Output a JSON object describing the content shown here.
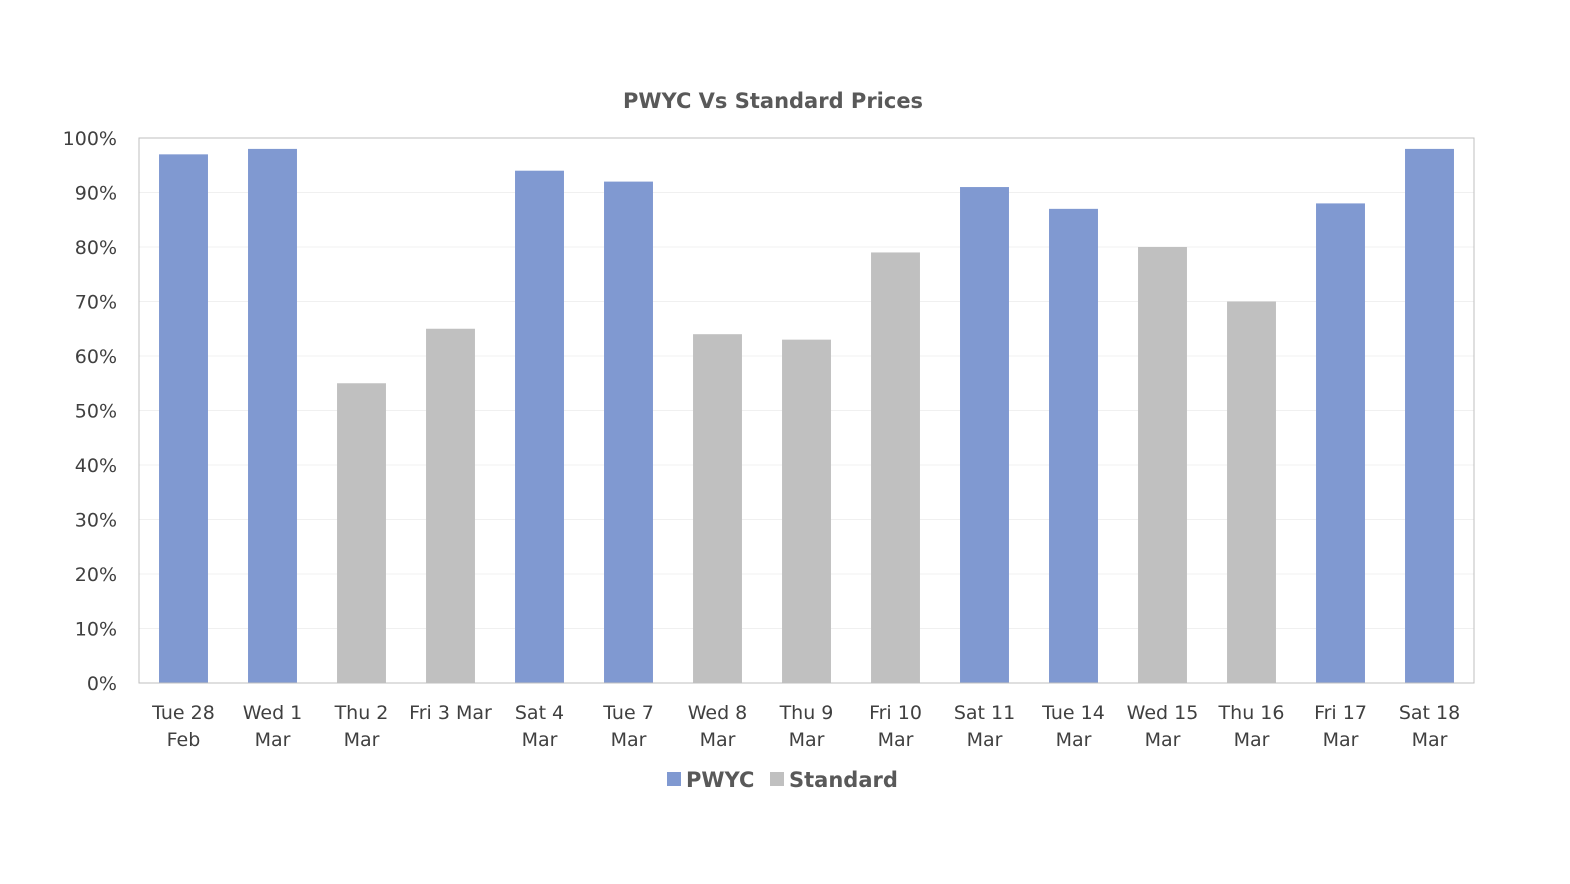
{
  "chart_data": {
    "type": "bar",
    "title": "PWYC Vs Standard Prices",
    "xlabel": "",
    "ylabel": "",
    "ylim": [
      0,
      100
    ],
    "y_ticks": [
      "0%",
      "10%",
      "20%",
      "30%",
      "40%",
      "50%",
      "60%",
      "70%",
      "80%",
      "90%",
      "100%"
    ],
    "y_tick_values": [
      0,
      10,
      20,
      30,
      40,
      50,
      60,
      70,
      80,
      90,
      100
    ],
    "grid": true,
    "legend_position": "bottom",
    "categories": [
      [
        "Tue 28",
        "Feb"
      ],
      [
        "Wed 1",
        "Mar"
      ],
      [
        "Thu 2",
        "Mar"
      ],
      [
        "Fri 3 Mar"
      ],
      [
        "Sat 4",
        "Mar"
      ],
      [
        "Tue 7",
        "Mar"
      ],
      [
        "Wed 8",
        "Mar"
      ],
      [
        "Thu 9",
        "Mar"
      ],
      [
        "Fri 10",
        "Mar"
      ],
      [
        "Sat 11",
        "Mar"
      ],
      [
        "Tue 14",
        "Mar"
      ],
      [
        "Wed 15",
        "Mar"
      ],
      [
        "Thu 16",
        "Mar"
      ],
      [
        "Fri 17",
        "Mar"
      ],
      [
        "Sat 18",
        "Mar"
      ]
    ],
    "series": [
      {
        "name": "PWYC",
        "color": "#8099d1",
        "values": [
          97,
          98,
          null,
          null,
          94,
          92,
          null,
          null,
          null,
          91,
          87,
          null,
          null,
          88,
          98
        ]
      },
      {
        "name": "Standard",
        "color": "#c0c0c0",
        "values": [
          null,
          null,
          55,
          65,
          null,
          null,
          64,
          63,
          79,
          null,
          null,
          80,
          70,
          null,
          null
        ]
      }
    ]
  }
}
